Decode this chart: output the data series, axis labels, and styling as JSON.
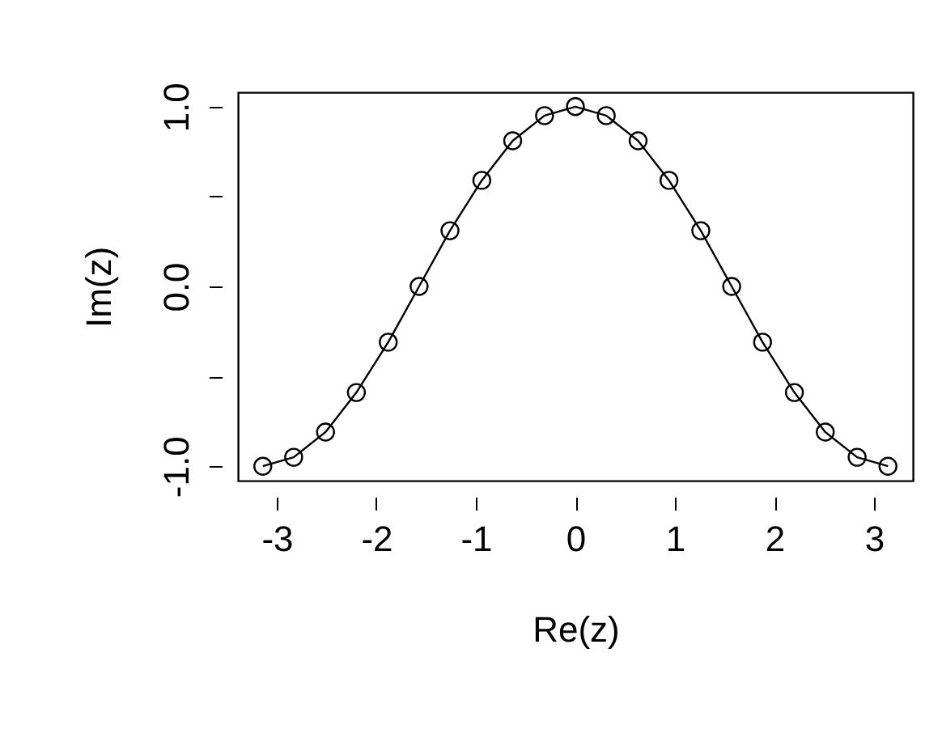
{
  "chart_data": {
    "type": "line",
    "xlabel": "Re(z)",
    "ylabel": "Im(z)",
    "marker": "circle",
    "line_style": "solid",
    "x": [
      -3.14,
      -2.83,
      -2.51,
      -2.2,
      -1.88,
      -1.57,
      -1.26,
      -0.94,
      -0.63,
      -0.31,
      0,
      0.31,
      0.63,
      0.94,
      1.26,
      1.57,
      1.88,
      2.2,
      2.51,
      2.83,
      3.14
    ],
    "series": [
      {
        "color": "#000000",
        "values": [
          -1,
          -0.95,
          -0.81,
          -0.59,
          -0.31,
          0,
          0.31,
          0.59,
          0.81,
          0.95,
          1,
          0.95,
          0.81,
          0.59,
          0.31,
          0,
          -0.31,
          -0.59,
          -0.81,
          -0.95,
          -1
        ]
      }
    ],
    "xlim": [
      -3.39,
      3.39
    ],
    "ylim": [
      -1.08,
      1.08
    ],
    "xticks": [
      -3,
      -2,
      -1,
      0,
      1,
      2,
      3
    ],
    "yticks": [
      {
        "value": -1,
        "label": "-1.0"
      },
      {
        "value": -0.5,
        "label": null
      },
      {
        "value": 0,
        "label": "0.0"
      },
      {
        "value": 0.5,
        "label": null
      },
      {
        "value": 1,
        "label": "1.0"
      }
    ]
  }
}
